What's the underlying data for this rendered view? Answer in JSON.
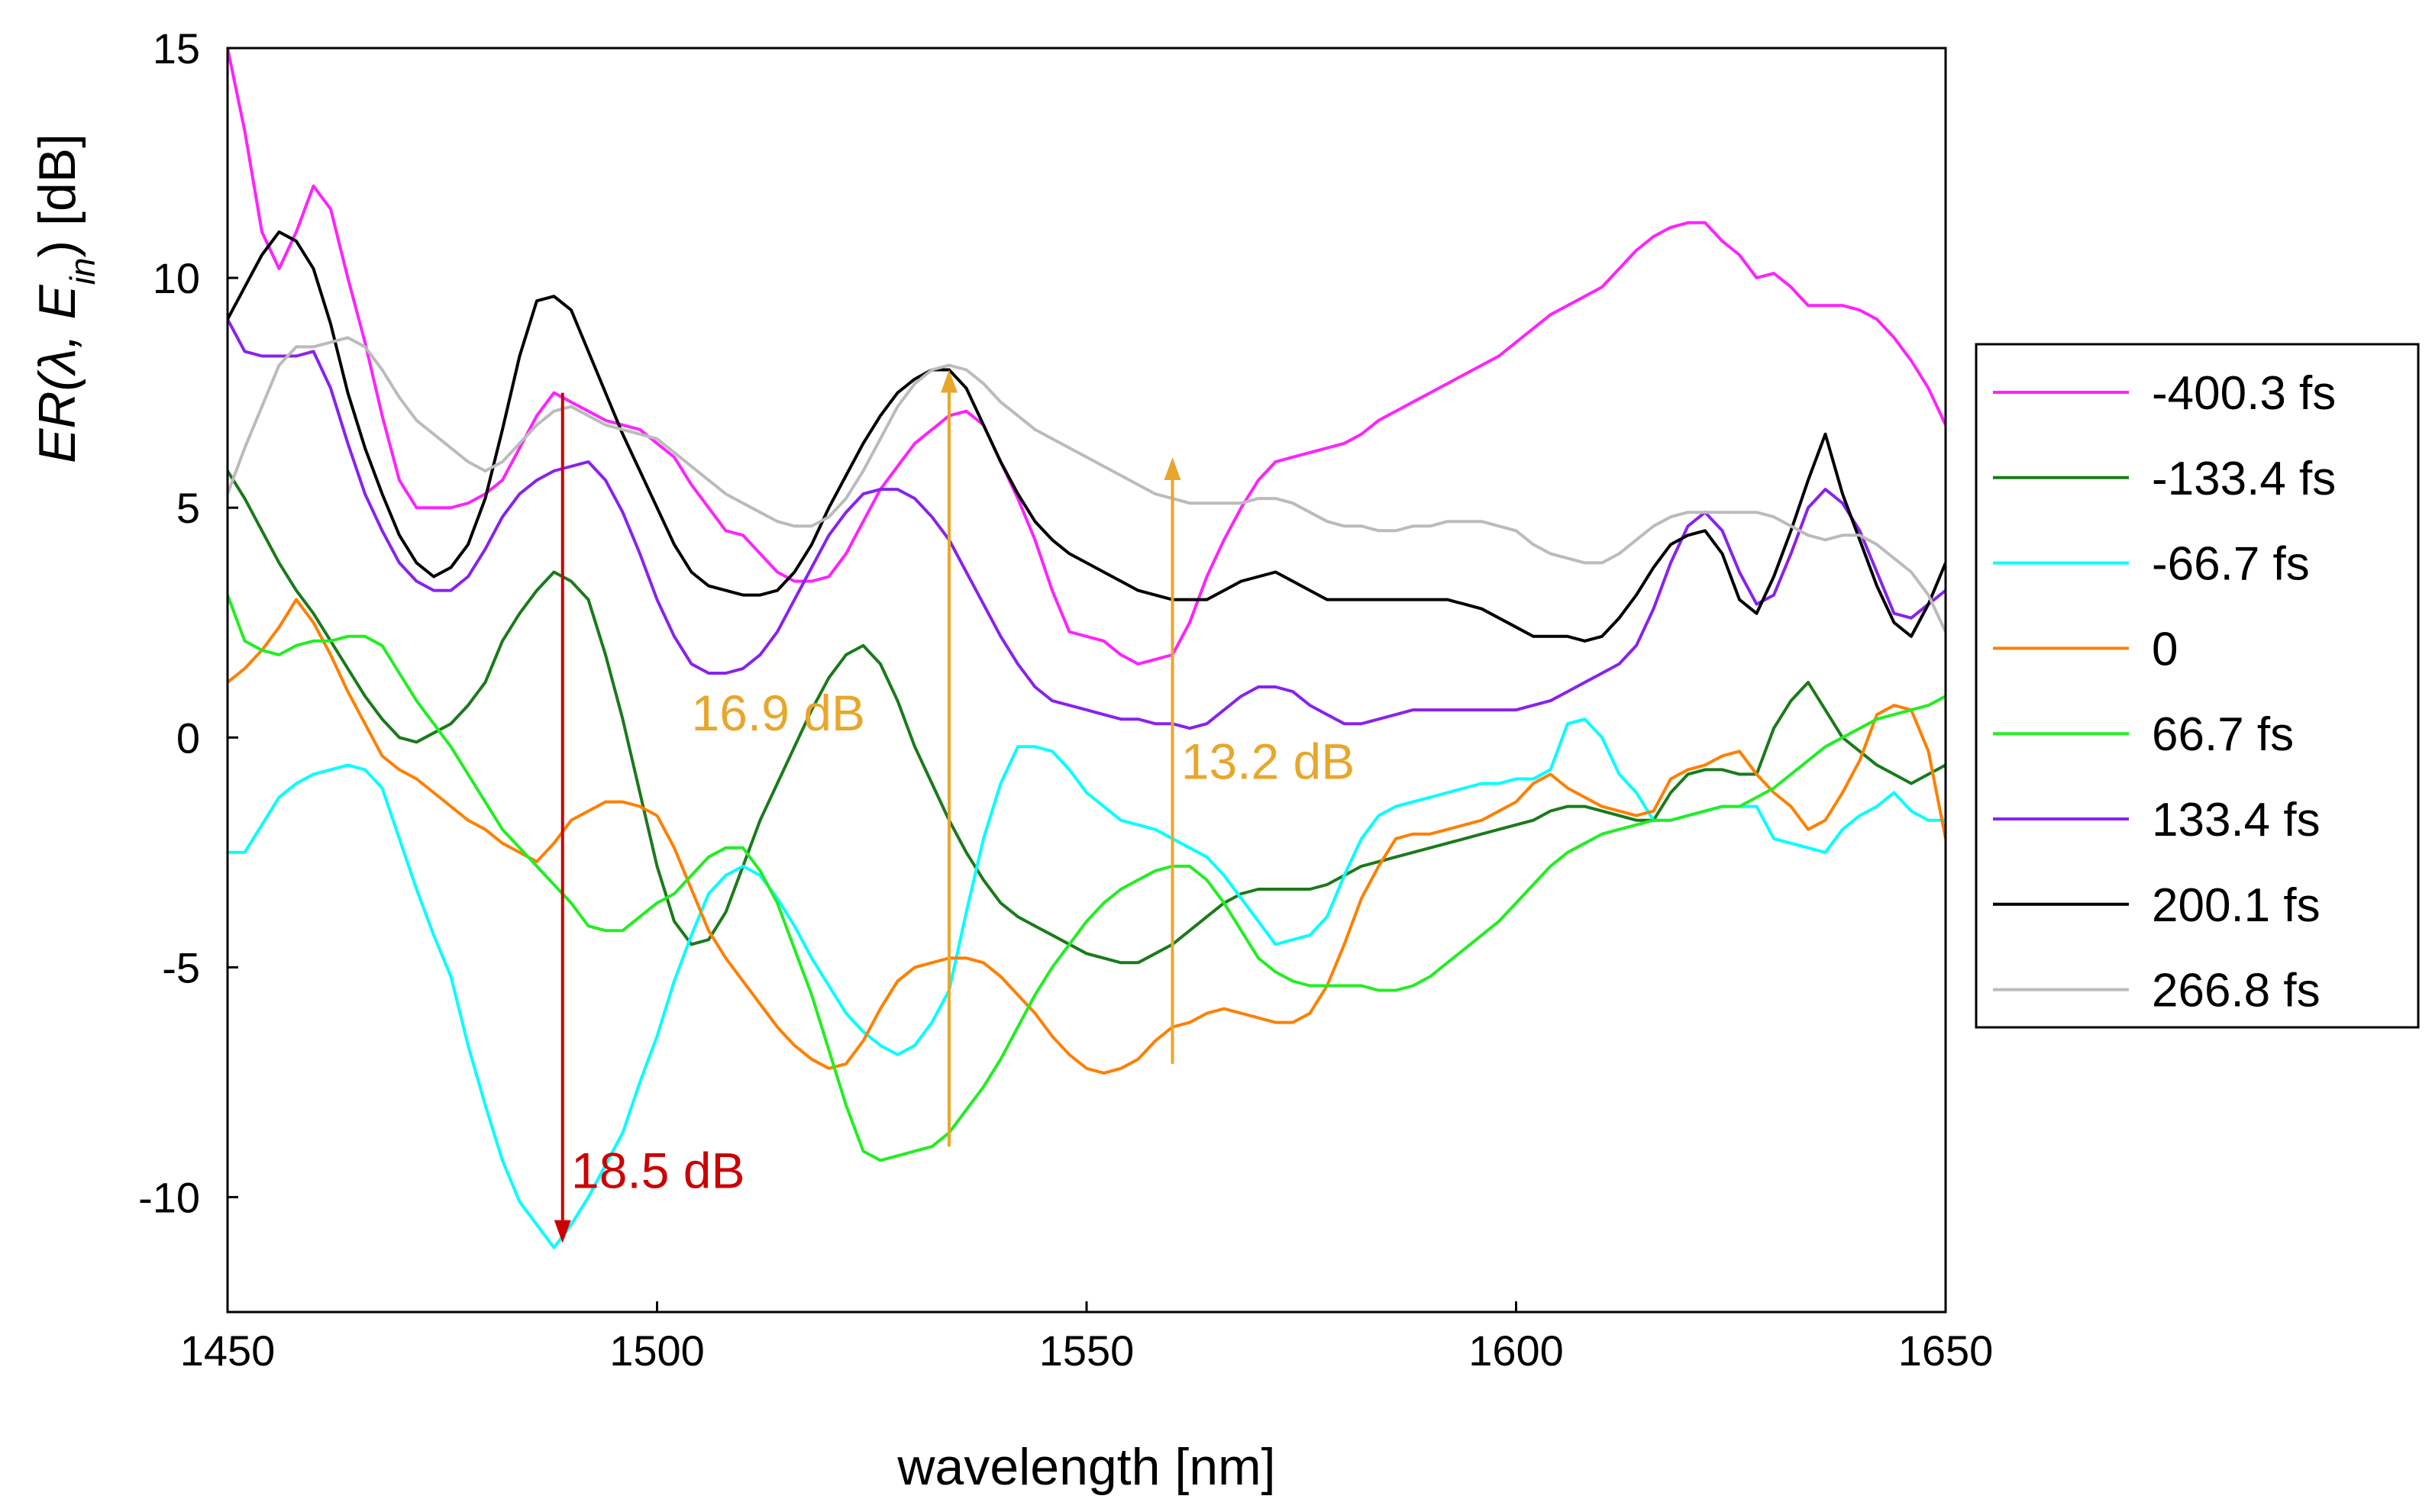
{
  "chart_data": {
    "type": "line",
    "title": "",
    "xlabel": "wavelength [nm]",
    "ylabel": {
      "main": "ER(λ, E",
      "sub": "in",
      "close": ") [dB]"
    },
    "xlim": [
      1450,
      1650
    ],
    "ylim": [
      -12.5,
      15
    ],
    "xticks": [
      1450,
      1500,
      1550,
      1600,
      1650
    ],
    "yticks": [
      -10,
      -5,
      0,
      5,
      10,
      15
    ],
    "grid": false,
    "legend_position": "right",
    "x": [
      1450,
      1452,
      1454,
      1456,
      1458,
      1460,
      1462,
      1464,
      1466,
      1468,
      1470,
      1472,
      1474,
      1476,
      1478,
      1480,
      1482,
      1484,
      1486,
      1488,
      1490,
      1492,
      1494,
      1496,
      1498,
      1500,
      1502,
      1504,
      1506,
      1508,
      1510,
      1512,
      1514,
      1516,
      1518,
      1520,
      1522,
      1524,
      1526,
      1528,
      1530,
      1532,
      1534,
      1536,
      1538,
      1540,
      1542,
      1544,
      1546,
      1548,
      1550,
      1552,
      1554,
      1556,
      1558,
      1560,
      1562,
      1564,
      1566,
      1568,
      1570,
      1572,
      1574,
      1576,
      1578,
      1580,
      1582,
      1584,
      1586,
      1588,
      1590,
      1592,
      1594,
      1596,
      1598,
      1600,
      1602,
      1604,
      1606,
      1608,
      1610,
      1612,
      1614,
      1616,
      1618,
      1620,
      1622,
      1624,
      1626,
      1628,
      1630,
      1632,
      1634,
      1636,
      1638,
      1640,
      1642,
      1644,
      1646,
      1648,
      1650
    ],
    "series": [
      {
        "name": "-400.3 fs",
        "color": "#ff22ff",
        "values": [
          15.0,
          13.2,
          11.0,
          10.2,
          11.0,
          12.0,
          11.5,
          10.0,
          8.6,
          7.0,
          5.6,
          5.0,
          5.0,
          5.0,
          5.1,
          5.3,
          5.6,
          6.3,
          7.0,
          7.5,
          7.3,
          7.1,
          6.9,
          6.8,
          6.7,
          6.4,
          6.1,
          5.5,
          5.0,
          4.5,
          4.4,
          4.0,
          3.6,
          3.4,
          3.4,
          3.5,
          4.0,
          4.7,
          5.4,
          5.9,
          6.4,
          6.7,
          7.0,
          7.1,
          6.8,
          6.0,
          5.2,
          4.3,
          3.2,
          2.3,
          2.2,
          2.1,
          1.8,
          1.6,
          1.7,
          1.8,
          2.5,
          3.5,
          4.3,
          5.0,
          5.6,
          6.0,
          6.1,
          6.2,
          6.3,
          6.4,
          6.6,
          6.9,
          7.1,
          7.3,
          7.5,
          7.7,
          7.9,
          8.1,
          8.3,
          8.6,
          8.9,
          9.2,
          9.4,
          9.6,
          9.8,
          10.2,
          10.6,
          10.9,
          11.1,
          11.2,
          11.2,
          10.8,
          10.5,
          10.0,
          10.1,
          9.8,
          9.4,
          9.4,
          9.4,
          9.3,
          9.1,
          8.7,
          8.2,
          7.6,
          6.8
        ]
      },
      {
        "name": "-133.4 fs",
        "color": "#1a7a1a",
        "values": [
          5.8,
          5.2,
          4.5,
          3.8,
          3.2,
          2.7,
          2.1,
          1.5,
          0.9,
          0.4,
          0.0,
          -0.1,
          0.1,
          0.3,
          0.7,
          1.2,
          2.1,
          2.7,
          3.2,
          3.6,
          3.4,
          3.0,
          1.8,
          0.4,
          -1.2,
          -2.8,
          -4.0,
          -4.5,
          -4.4,
          -3.8,
          -2.8,
          -1.8,
          -1.0,
          -0.2,
          0.6,
          1.3,
          1.8,
          2.0,
          1.6,
          0.8,
          -0.2,
          -1.0,
          -1.8,
          -2.5,
          -3.1,
          -3.6,
          -3.9,
          -4.1,
          -4.3,
          -4.5,
          -4.7,
          -4.8,
          -4.9,
          -4.9,
          -4.7,
          -4.5,
          -4.2,
          -3.9,
          -3.6,
          -3.4,
          -3.3,
          -3.3,
          -3.3,
          -3.3,
          -3.2,
          -3.0,
          -2.8,
          -2.7,
          -2.6,
          -2.5,
          -2.4,
          -2.3,
          -2.2,
          -2.1,
          -2.0,
          -1.9,
          -1.8,
          -1.6,
          -1.5,
          -1.5,
          -1.6,
          -1.7,
          -1.8,
          -1.8,
          -1.2,
          -0.8,
          -0.7,
          -0.7,
          -0.8,
          -0.8,
          0.2,
          0.8,
          1.2,
          0.6,
          0.0,
          -0.3,
          -0.6,
          -0.8,
          -1.0,
          -0.8,
          -0.6
        ]
      },
      {
        "name": "-66.7 fs",
        "color": "#00ffff",
        "values": [
          -2.5,
          -2.5,
          -1.9,
          -1.3,
          -1.0,
          -0.8,
          -0.7,
          -0.6,
          -0.7,
          -1.1,
          -2.2,
          -3.3,
          -4.3,
          -5.2,
          -6.7,
          -8.0,
          -9.2,
          -10.1,
          -10.6,
          -11.1,
          -10.6,
          -10.0,
          -9.3,
          -8.6,
          -7.5,
          -6.5,
          -5.3,
          -4.3,
          -3.4,
          -3.0,
          -2.8,
          -3.0,
          -3.5,
          -4.1,
          -4.8,
          -5.4,
          -6.0,
          -6.4,
          -6.7,
          -6.9,
          -6.7,
          -6.2,
          -5.5,
          -3.8,
          -2.2,
          -1.0,
          -0.2,
          -0.2,
          -0.3,
          -0.7,
          -1.2,
          -1.5,
          -1.8,
          -1.9,
          -2.0,
          -2.2,
          -2.4,
          -2.6,
          -3.0,
          -3.5,
          -4.0,
          -4.5,
          -4.4,
          -4.3,
          -3.9,
          -3.0,
          -2.2,
          -1.7,
          -1.5,
          -1.4,
          -1.3,
          -1.2,
          -1.1,
          -1.0,
          -1.0,
          -0.9,
          -0.9,
          -0.7,
          0.3,
          0.4,
          0.0,
          -0.8,
          -1.2,
          -1.8,
          -1.8,
          -1.7,
          -1.6,
          -1.5,
          -1.5,
          -1.5,
          -2.2,
          -2.3,
          -2.4,
          -2.5,
          -2.0,
          -1.7,
          -1.5,
          -1.2,
          -1.6,
          -1.8,
          -1.8
        ]
      },
      {
        "name": "0",
        "color": "#ff7f00",
        "values": [
          1.2,
          1.5,
          1.9,
          2.4,
          3.0,
          2.5,
          1.8,
          1.0,
          0.3,
          -0.4,
          -0.7,
          -0.9,
          -1.2,
          -1.5,
          -1.8,
          -2.0,
          -2.3,
          -2.5,
          -2.7,
          -2.3,
          -1.8,
          -1.6,
          -1.4,
          -1.4,
          -1.5,
          -1.7,
          -2.4,
          -3.3,
          -4.2,
          -4.8,
          -5.3,
          -5.8,
          -6.3,
          -6.7,
          -7.0,
          -7.2,
          -7.1,
          -6.6,
          -5.9,
          -5.3,
          -5.0,
          -4.9,
          -4.8,
          -4.8,
          -4.9,
          -5.2,
          -5.6,
          -6.0,
          -6.5,
          -6.9,
          -7.2,
          -7.3,
          -7.2,
          -7.0,
          -6.6,
          -6.3,
          -6.2,
          -6.0,
          -5.9,
          -6.0,
          -6.1,
          -6.2,
          -6.2,
          -6.0,
          -5.4,
          -4.5,
          -3.5,
          -2.8,
          -2.2,
          -2.1,
          -2.1,
          -2.0,
          -1.9,
          -1.8,
          -1.6,
          -1.4,
          -1.0,
          -0.8,
          -1.1,
          -1.3,
          -1.5,
          -1.6,
          -1.7,
          -1.6,
          -0.9,
          -0.7,
          -0.6,
          -0.4,
          -0.3,
          -0.8,
          -1.2,
          -1.5,
          -2.0,
          -1.8,
          -1.2,
          -0.5,
          0.5,
          0.7,
          0.6,
          -0.3,
          -2.2
        ]
      },
      {
        "name": "66.7 fs",
        "color": "#22ee22",
        "values": [
          3.1,
          2.1,
          1.9,
          1.8,
          2.0,
          2.1,
          2.1,
          2.2,
          2.2,
          2.0,
          1.4,
          0.8,
          0.3,
          -0.2,
          -0.8,
          -1.4,
          -2.0,
          -2.4,
          -2.8,
          -3.2,
          -3.6,
          -4.1,
          -4.2,
          -4.2,
          -3.9,
          -3.6,
          -3.4,
          -3.0,
          -2.6,
          -2.4,
          -2.4,
          -2.9,
          -3.6,
          -4.6,
          -5.6,
          -6.8,
          -8.0,
          -9.0,
          -9.2,
          -9.1,
          -9.0,
          -8.9,
          -8.6,
          -8.1,
          -7.6,
          -7.0,
          -6.3,
          -5.6,
          -5.0,
          -4.5,
          -4.0,
          -3.6,
          -3.3,
          -3.1,
          -2.9,
          -2.8,
          -2.8,
          -3.1,
          -3.6,
          -4.2,
          -4.8,
          -5.1,
          -5.3,
          -5.4,
          -5.4,
          -5.4,
          -5.4,
          -5.5,
          -5.5,
          -5.4,
          -5.2,
          -4.9,
          -4.6,
          -4.3,
          -4.0,
          -3.6,
          -3.2,
          -2.8,
          -2.5,
          -2.3,
          -2.1,
          -2.0,
          -1.9,
          -1.8,
          -1.8,
          -1.7,
          -1.6,
          -1.5,
          -1.5,
          -1.3,
          -1.1,
          -0.8,
          -0.5,
          -0.2,
          0.0,
          0.2,
          0.4,
          0.5,
          0.6,
          0.7,
          0.9
        ]
      },
      {
        "name": "133.4 fs",
        "color": "#8822ee",
        "values": [
          9.1,
          8.4,
          8.3,
          8.3,
          8.3,
          8.4,
          7.6,
          6.4,
          5.3,
          4.5,
          3.8,
          3.4,
          3.2,
          3.2,
          3.5,
          4.1,
          4.8,
          5.3,
          5.6,
          5.8,
          5.9,
          6.0,
          5.6,
          4.9,
          4.0,
          3.0,
          2.2,
          1.6,
          1.4,
          1.4,
          1.5,
          1.8,
          2.3,
          3.0,
          3.7,
          4.4,
          4.9,
          5.3,
          5.4,
          5.4,
          5.2,
          4.8,
          4.3,
          3.6,
          2.9,
          2.2,
          1.6,
          1.1,
          0.8,
          0.7,
          0.6,
          0.5,
          0.4,
          0.4,
          0.3,
          0.3,
          0.2,
          0.3,
          0.6,
          0.9,
          1.1,
          1.1,
          1.0,
          0.7,
          0.5,
          0.3,
          0.3,
          0.4,
          0.5,
          0.6,
          0.6,
          0.6,
          0.6,
          0.6,
          0.6,
          0.6,
          0.7,
          0.8,
          1.0,
          1.2,
          1.4,
          1.6,
          2.0,
          2.8,
          3.8,
          4.6,
          4.9,
          4.5,
          3.6,
          2.9,
          3.1,
          4.0,
          5.0,
          5.4,
          5.1,
          4.5,
          3.6,
          2.7,
          2.6,
          2.9,
          3.2
        ]
      },
      {
        "name": "200.1 fs",
        "color": "#000000",
        "values": [
          9.1,
          9.8,
          10.5,
          11.0,
          10.8,
          10.2,
          9.0,
          7.5,
          6.3,
          5.3,
          4.4,
          3.8,
          3.5,
          3.7,
          4.2,
          5.2,
          6.7,
          8.3,
          9.5,
          9.6,
          9.3,
          8.4,
          7.5,
          6.6,
          5.8,
          5.0,
          4.2,
          3.6,
          3.3,
          3.2,
          3.1,
          3.1,
          3.2,
          3.6,
          4.2,
          5.0,
          5.7,
          6.4,
          7.0,
          7.5,
          7.8,
          8.0,
          8.0,
          7.6,
          6.8,
          6.0,
          5.3,
          4.7,
          4.3,
          4.0,
          3.8,
          3.6,
          3.4,
          3.2,
          3.1,
          3.0,
          3.0,
          3.0,
          3.2,
          3.4,
          3.5,
          3.6,
          3.4,
          3.2,
          3.0,
          3.0,
          3.0,
          3.0,
          3.0,
          3.0,
          3.0,
          3.0,
          2.9,
          2.8,
          2.6,
          2.4,
          2.2,
          2.2,
          2.2,
          2.1,
          2.2,
          2.6,
          3.1,
          3.7,
          4.2,
          4.4,
          4.5,
          4.0,
          3.0,
          2.7,
          3.5,
          4.5,
          5.6,
          6.6,
          5.3,
          4.3,
          3.3,
          2.5,
          2.2,
          2.9,
          3.8
        ]
      },
      {
        "name": "266.8 fs",
        "color": "#bbbbbb",
        "values": [
          5.3,
          6.3,
          7.2,
          8.1,
          8.5,
          8.5,
          8.6,
          8.7,
          8.5,
          8.0,
          7.4,
          6.9,
          6.6,
          6.3,
          6.0,
          5.8,
          6.0,
          6.4,
          6.8,
          7.1,
          7.2,
          7.0,
          6.8,
          6.7,
          6.6,
          6.5,
          6.2,
          5.9,
          5.6,
          5.3,
          5.1,
          4.9,
          4.7,
          4.6,
          4.6,
          4.8,
          5.2,
          5.8,
          6.5,
          7.2,
          7.7,
          8.0,
          8.1,
          8.0,
          7.7,
          7.3,
          7.0,
          6.7,
          6.5,
          6.3,
          6.1,
          5.9,
          5.7,
          5.5,
          5.3,
          5.2,
          5.1,
          5.1,
          5.1,
          5.1,
          5.2,
          5.2,
          5.1,
          4.9,
          4.7,
          4.6,
          4.6,
          4.5,
          4.5,
          4.6,
          4.6,
          4.7,
          4.7,
          4.7,
          4.6,
          4.5,
          4.2,
          4.0,
          3.9,
          3.8,
          3.8,
          4.0,
          4.3,
          4.6,
          4.8,
          4.9,
          4.9,
          4.9,
          4.9,
          4.9,
          4.8,
          4.6,
          4.4,
          4.3,
          4.4,
          4.4,
          4.2,
          3.9,
          3.6,
          3.1,
          2.3
        ]
      }
    ],
    "annotations": [
      {
        "label": "18.5 dB",
        "color": "#cc0000",
        "x": 1489,
        "y_from": 7.5,
        "y_to": -11.0,
        "direction": "down",
        "label_x": 1490,
        "label_y": -9.8
      },
      {
        "label": "16.9 dB",
        "color": "#e8a72b",
        "x": 1534,
        "y_from": -8.9,
        "y_to": 8.0,
        "direction": "up",
        "label_x": 1504,
        "label_y": 0.15
      },
      {
        "label": "13.2 dB",
        "color": "#e8a72b",
        "x": 1560,
        "y_from": -7.1,
        "y_to": 6.1,
        "direction": "up",
        "label_x": 1561,
        "label_y": -0.9
      }
    ]
  }
}
